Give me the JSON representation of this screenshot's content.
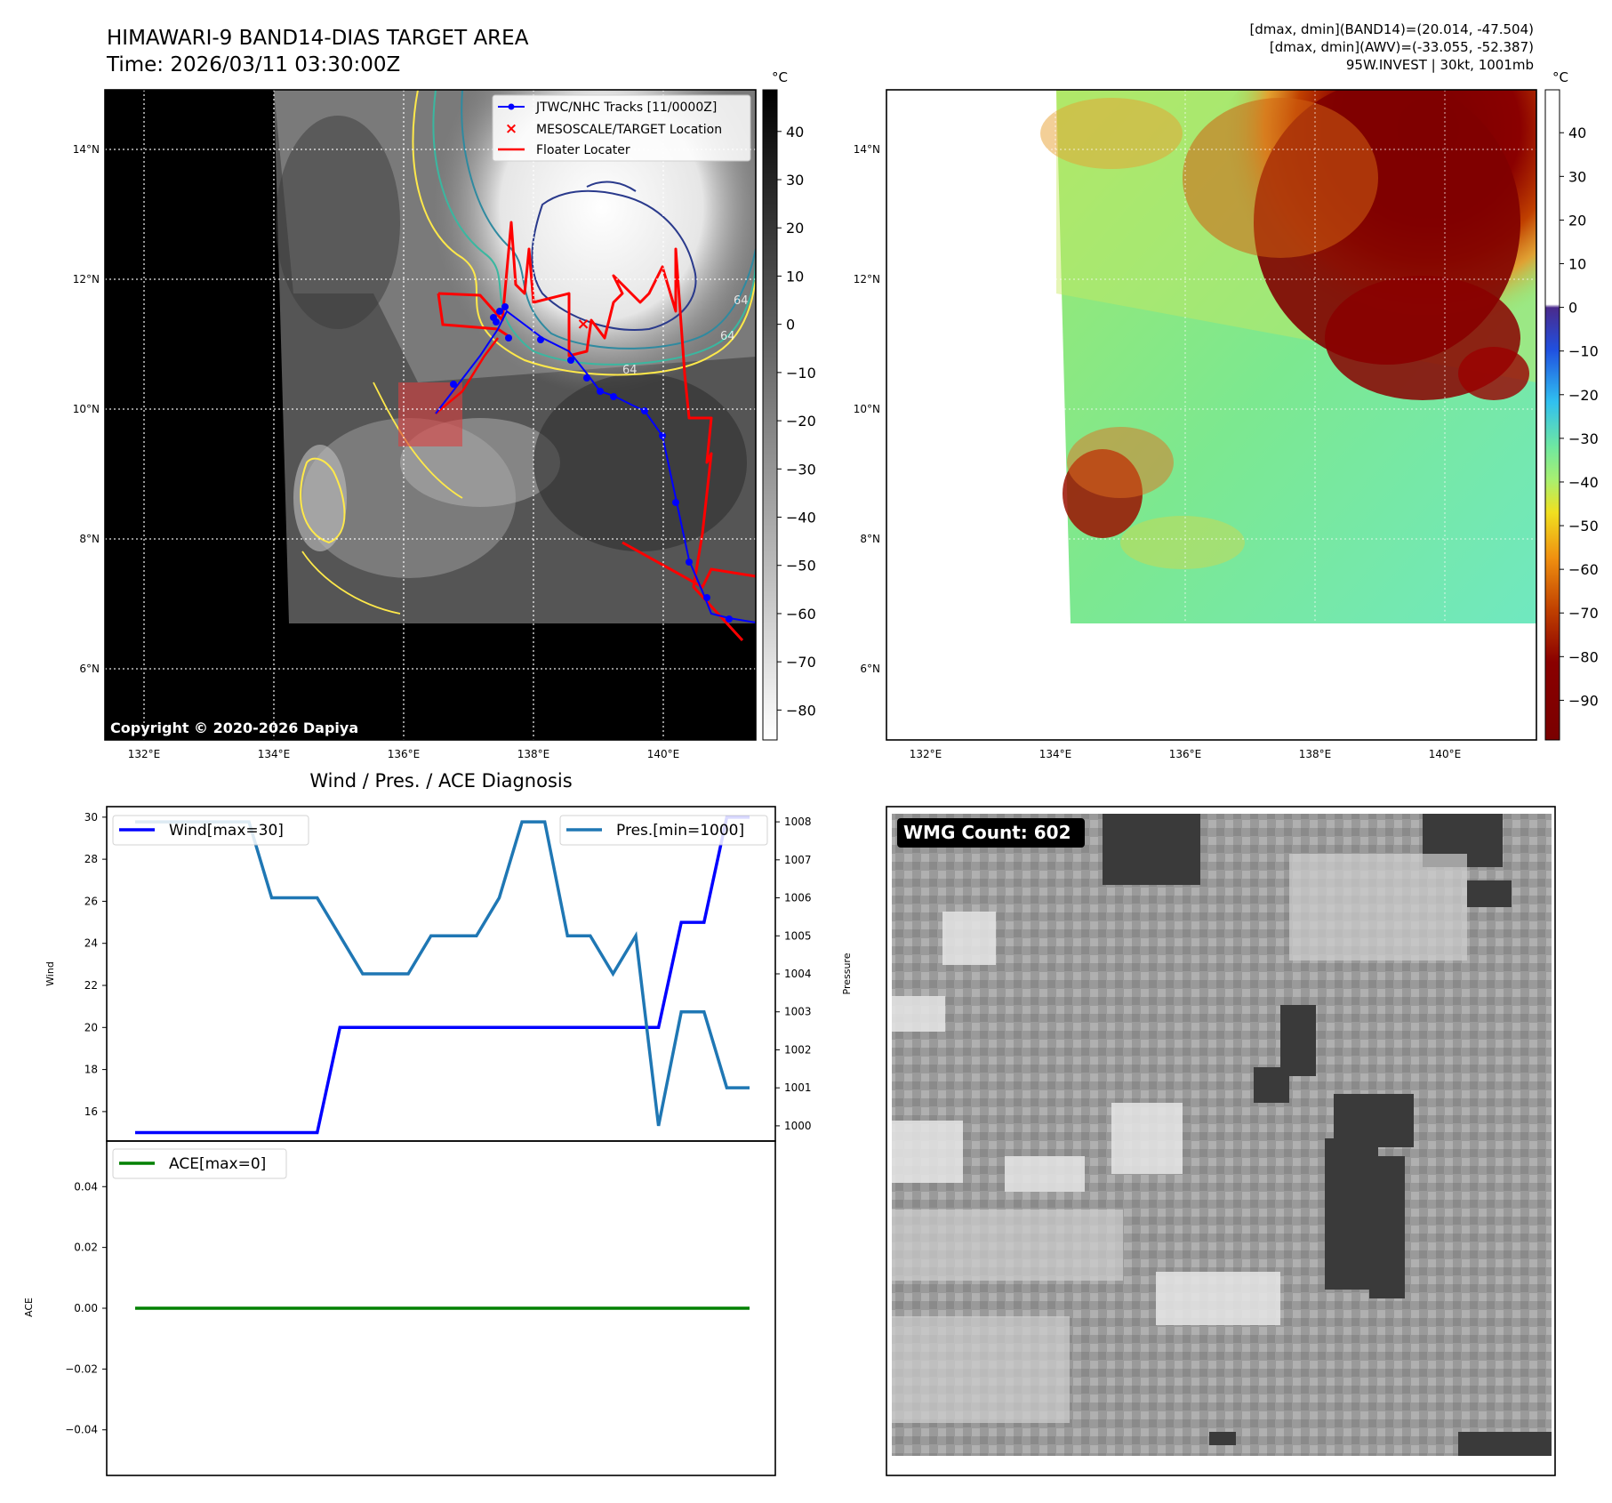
{
  "title": {
    "line1": "HIMAWARI-9 BAND14-DIAS TARGET AREA",
    "line2": "Time: 2026/03/11 03:30:00Z"
  },
  "info": {
    "line1": "[dmax, dmin](BAND14)=(20.014, -47.504)",
    "line2": "[dmax, dmin](AWV)=(-33.055, -52.387)",
    "line3": "95W.INVEST | 30kt, 1001mb"
  },
  "copyright": "Copyright © 2020-2026 Dapiya",
  "unit": "°C",
  "map": {
    "lon_ticks": [
      "132°E",
      "134°E",
      "136°E",
      "138°E",
      "140°E"
    ],
    "lat_ticks": [
      "14°N",
      "12°N",
      "10°N",
      "8°N",
      "6°N"
    ],
    "contour_labels": [
      "64",
      "64",
      "64"
    ]
  },
  "legend_map": {
    "tracks": "JTWC/NHC Tracks [11/0000Z]",
    "target": "MESOSCALE/TARGET Location",
    "floater": "Floater Locater"
  },
  "colorbar1": {
    "ticks": [
      "40",
      "30",
      "20",
      "10",
      "0",
      "−10",
      "−20",
      "−30",
      "−40",
      "−50",
      "−60",
      "−70",
      "−80"
    ]
  },
  "colorbar2": {
    "ticks": [
      "40",
      "30",
      "20",
      "10",
      "0",
      "−10",
      "−20",
      "−30",
      "−40",
      "−50",
      "−60",
      "−70",
      "−80",
      "−90"
    ]
  },
  "wmg": {
    "label": "WMG Count: 602"
  },
  "colors": {
    "wind": "#0000ff",
    "pressure": "#1f77b4",
    "ace": "#008000",
    "track": "#0000ff",
    "floater": "#ff0000"
  },
  "chart_data": [
    {
      "type": "line",
      "title": "Wind / Pres. / ACE Diagnosis",
      "ylabel": "Wind",
      "y2label": "Pressure",
      "x": [
        0,
        1,
        2,
        3,
        4,
        5,
        6,
        7,
        8,
        9,
        10,
        11,
        12,
        13,
        14,
        15,
        16,
        17,
        18,
        19,
        20,
        21,
        22,
        23,
        24,
        25,
        26,
        27
      ],
      "ylim": [
        14.6,
        30.5
      ],
      "y_ticks": [
        "16",
        "18",
        "20",
        "22",
        "24",
        "26",
        "28",
        "30"
      ],
      "y2lim": [
        999.6,
        1008.4
      ],
      "y2_ticks": [
        "1000",
        "1001",
        "1002",
        "1003",
        "1004",
        "1005",
        "1006",
        "1007",
        "1008"
      ],
      "series": [
        {
          "name": "Wind[max=30]",
          "axis": "left",
          "values": [
            15,
            15,
            15,
            15,
            15,
            15,
            15,
            15,
            15,
            20,
            20,
            20,
            20,
            20,
            20,
            20,
            20,
            20,
            20,
            20,
            20,
            20,
            20,
            20,
            25,
            25,
            30,
            30
          ]
        },
        {
          "name": "Pres.[min=1000]",
          "axis": "right",
          "values": [
            1008,
            1008,
            1008,
            1008,
            1008,
            1008,
            1006,
            1006,
            1006,
            1005,
            1004,
            1004,
            1004,
            1005,
            1005,
            1005,
            1006,
            1008,
            1008,
            1005,
            1005,
            1004,
            1005,
            1000,
            1003,
            1003,
            1001,
            1001
          ]
        }
      ]
    },
    {
      "type": "line",
      "ylabel": "ACE",
      "ylim": [
        -0.055,
        0.055
      ],
      "y_ticks": [
        "0.04",
        "0.02",
        "0.00",
        "−0.02",
        "−0.04"
      ],
      "series": [
        {
          "name": "ACE[max=0]",
          "values": [
            0,
            0,
            0,
            0,
            0,
            0,
            0,
            0,
            0,
            0,
            0,
            0,
            0,
            0,
            0,
            0,
            0,
            0,
            0,
            0,
            0,
            0,
            0,
            0,
            0,
            0,
            0,
            0
          ]
        }
      ]
    }
  ]
}
